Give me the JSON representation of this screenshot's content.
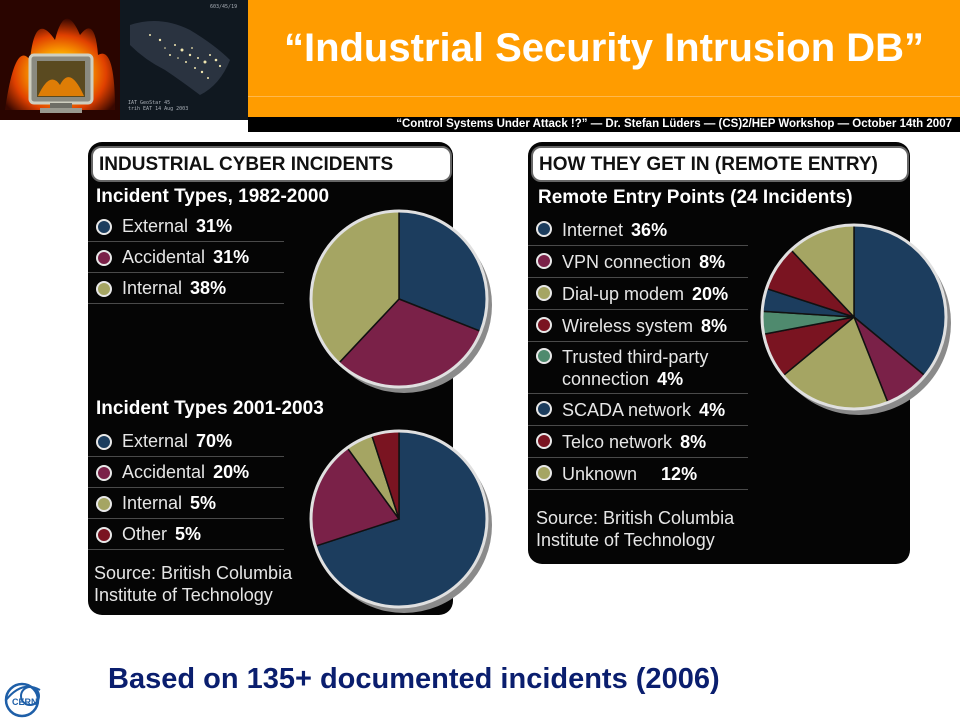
{
  "header": {
    "title": "“Industrial Security Intrusion DB”",
    "subtitle": "“Control Systems Under Attack !?” — Dr. Stefan Lüders — (CS)2/HEP Workshop — October 14th 2007",
    "images": [
      "fire-monitor-image",
      "night-earth-map-image"
    ]
  },
  "colors": {
    "accent": "#ff9c00",
    "external": "#1c3d5e",
    "accidental": "#7a2148",
    "internal": "#a5a563",
    "other": "#7a1421",
    "trusted": "#4f8a6e",
    "footer_text": "#0a1e6e"
  },
  "left_panel": {
    "title": "INDUSTRIAL CYBER INCIDENTS",
    "source": [
      "Source: British Columbia",
      "Institute of Technology"
    ]
  },
  "right_panel": {
    "title": "HOW THEY GET IN (REMOTE ENTRY)",
    "source": [
      "Source: British Columbia",
      "Institute of Technology"
    ]
  },
  "chart_data": [
    {
      "type": "pie",
      "title": "Incident Types, 1982-2000",
      "slices": [
        {
          "name": "External",
          "value": 31,
          "label": "31%",
          "color": "#1c3d5e"
        },
        {
          "name": "Accidental",
          "value": 31,
          "label": "31%",
          "color": "#7a2148"
        },
        {
          "name": "Internal",
          "value": 38,
          "label": "38%",
          "color": "#a5a563"
        }
      ]
    },
    {
      "type": "pie",
      "title": "Incident Types 2001-2003",
      "slices": [
        {
          "name": "External",
          "value": 70,
          "label": "70%",
          "color": "#1c3d5e"
        },
        {
          "name": "Accidental",
          "value": 20,
          "label": "20%",
          "color": "#7a2148"
        },
        {
          "name": "Internal",
          "value": 5,
          "label": "5%",
          "color": "#a5a563"
        },
        {
          "name": "Other",
          "value": 5,
          "label": "5%",
          "color": "#7a1421"
        }
      ]
    },
    {
      "type": "pie",
      "title": "Remote Entry Points (24 Incidents)",
      "slices": [
        {
          "name": "Internet",
          "value": 36,
          "label": "36%",
          "color": "#1c3d5e"
        },
        {
          "name": "VPN connection",
          "value": 8,
          "label": "8%",
          "color": "#7a2148"
        },
        {
          "name": "Dial-up modem",
          "value": 20,
          "label": "20%",
          "color": "#a5a563"
        },
        {
          "name": "Wireless system",
          "value": 8,
          "label": "8%",
          "color": "#7a1421"
        },
        {
          "name": "Trusted third-party connection",
          "lines": [
            "Trusted third-party",
            "connection"
          ],
          "value": 4,
          "label": "4%",
          "color": "#4f8a6e"
        },
        {
          "name": "SCADA network",
          "value": 4,
          "label": "4%",
          "color": "#1c3d5e"
        },
        {
          "name": "Telco network",
          "value": 8,
          "label": "8%",
          "color": "#7a1421"
        },
        {
          "name": "Unknown",
          "value": 12,
          "label": "12%",
          "color": "#a5a563"
        }
      ]
    }
  ],
  "footer": {
    "text": "Based on 135+ documented incidents (2006)",
    "logo": "cern-logo"
  }
}
